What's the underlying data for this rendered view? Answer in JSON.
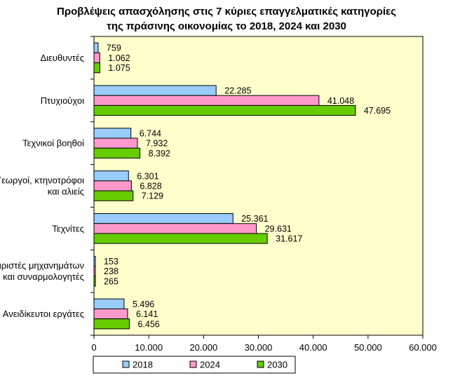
{
  "chart_data": {
    "type": "bar",
    "orientation": "horizontal",
    "title": "Προβλέψεις απασχόλησης στις 7 κύριες επαγγελματικές κατηγορίες της πράσινης οικονομίας το 2018, 2024 και 2030",
    "title_lines": [
      "Προβλέψεις απασχόλησης στις 7 κύριες επαγγελματικές κατηγορίες",
      "της πράσινης οικονομίας το 2018, 2024 και 2030"
    ],
    "categories": [
      [
        "Διευθυντές"
      ],
      [
        "Πτυχιούχοι"
      ],
      [
        "Τεχνικοί βοηθοί"
      ],
      [
        "Γεωργοί, κτηνοτρόφοι",
        "και αλιείς"
      ],
      [
        "Τεχνίτες"
      ],
      [
        "Χειριστές μηχανημάτων",
        "και συναρμολογητές"
      ],
      [
        "Ανειδίκευτοι εργάτες"
      ]
    ],
    "series": [
      {
        "name": "2018",
        "color": "#99CCFF",
        "values": [
          759,
          22285,
          6744,
          6301,
          25361,
          153,
          5496
        ],
        "labels": [
          "759",
          "22.285",
          "6.744",
          "6.301",
          "25.361",
          "153",
          "5.496"
        ]
      },
      {
        "name": "2024",
        "color": "#FF99CC",
        "values": [
          1062,
          41048,
          7932,
          6828,
          29631,
          238,
          6141
        ],
        "labels": [
          "1.062",
          "41.048",
          "7.932",
          "6.828",
          "29.631",
          "238",
          "6.141"
        ]
      },
      {
        "name": "2030",
        "color": "#66CC00",
        "values": [
          1075,
          47695,
          8392,
          7129,
          31617,
          265,
          6456
        ],
        "labels": [
          "1.075",
          "47.695",
          "8.392",
          "7.129",
          "31.617",
          "265",
          "6.456"
        ]
      }
    ],
    "xlim": [
      0,
      60000
    ],
    "xticks": [
      0,
      10000,
      20000,
      30000,
      40000,
      50000,
      60000
    ],
    "xtick_labels": [
      "0",
      "10.000",
      "20.000",
      "30.000",
      "40.000",
      "50.000",
      "60.000"
    ],
    "plot_background": "#FFFFCC",
    "grid": false,
    "legend_position": "bottom"
  }
}
